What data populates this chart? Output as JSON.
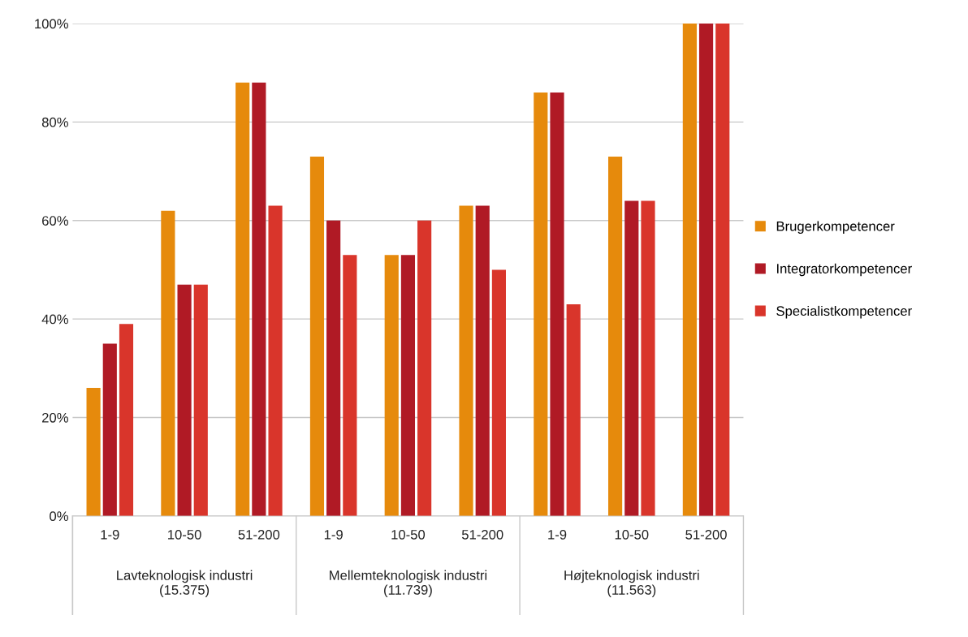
{
  "chart_data": {
    "type": "bar",
    "categories": [
      "1-9",
      "10-50",
      "51-200",
      "1-9",
      "10-50",
      "51-200",
      "1-9",
      "10-50",
      "51-200"
    ],
    "annotations": [
      "Lavteknologisk industri\n(15.375)",
      "Mellemteknologisk industri\n(11.739)",
      "Højteknologisk industri\n(11.563)"
    ],
    "series": [
      {
        "name": "Brugerkompetencer",
        "color": "#e68a0c",
        "values": [
          26,
          62,
          88,
          73,
          53,
          63,
          86,
          73,
          100
        ]
      },
      {
        "name": "Integratorkompetencer",
        "color": "#b01a25",
        "values": [
          35,
          47,
          88,
          60,
          53,
          63,
          86,
          64,
          100
        ]
      },
      {
        "name": "Specialistkompetencer",
        "color": "#d9352b",
        "values": [
          39,
          47,
          63,
          53,
          60,
          50,
          43,
          64,
          100
        ]
      }
    ],
    "ylim": [
      0,
      100
    ],
    "yticks": [
      {
        "value": 0,
        "label": "0%"
      },
      {
        "value": 20,
        "label": "20%"
      },
      {
        "value": 40,
        "label": "40%"
      },
      {
        "value": 60,
        "label": "60%"
      },
      {
        "value": 80,
        "label": "80%"
      },
      {
        "value": 100,
        "label": "100%"
      }
    ],
    "grid": "y",
    "legend": "right"
  }
}
